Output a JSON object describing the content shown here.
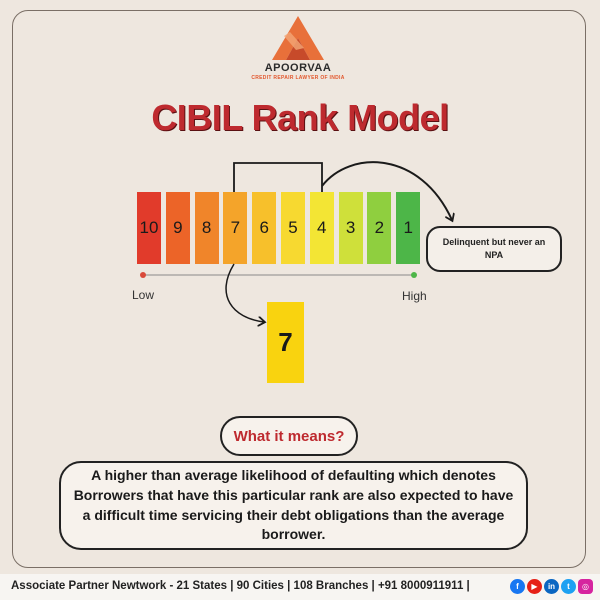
{
  "brand": {
    "name": "APOORVAA",
    "tagline": "CREDIT REPAIR LAWYER OF INDIA",
    "logo_colors": [
      "#e8703a",
      "#c74a2a"
    ]
  },
  "title": "CIBIL Rank Model",
  "scale": {
    "ranks": [
      {
        "label": "10",
        "color": "#e13b2b"
      },
      {
        "label": "9",
        "color": "#ec6428"
      },
      {
        "label": "8",
        "color": "#f0852a"
      },
      {
        "label": "7",
        "color": "#f4a42a"
      },
      {
        "label": "6",
        "color": "#f7c02b"
      },
      {
        "label": "5",
        "color": "#f7d930"
      },
      {
        "label": "4",
        "color": "#f3e534"
      },
      {
        "label": "3",
        "color": "#cfe03a"
      },
      {
        "label": "2",
        "color": "#8fcf3f"
      },
      {
        "label": "1",
        "color": "#4db648"
      }
    ],
    "low_label": "Low",
    "high_label": "High",
    "low_dot_color": "#d94a3a",
    "high_dot_color": "#4db648"
  },
  "callout": "Delinquent but never an NPA",
  "selected_rank": "7",
  "selected_color": "#f9d30f",
  "meaning_label": "What it means?",
  "description": "A higher than average likelihood of defaulting which denotes Borrowers that have this particular rank are also expected to have a difficult time servicing their debt obligations than the average borrower.",
  "footer": {
    "text": "Associate Partner Newtwork - 21 States | 90 Cities | 108 Branches   |   +91 8000911911   |",
    "social": [
      {
        "name": "facebook-icon",
        "glyph": "f",
        "color": "#1877f2"
      },
      {
        "name": "youtube-icon",
        "glyph": "▶",
        "color": "#e62117"
      },
      {
        "name": "linkedin-icon",
        "glyph": "in",
        "color": "#0a66c2"
      },
      {
        "name": "twitter-icon",
        "glyph": "t",
        "color": "#1da1f2"
      },
      {
        "name": "instagram-icon",
        "glyph": "◎",
        "color": "#d6249f"
      }
    ]
  }
}
